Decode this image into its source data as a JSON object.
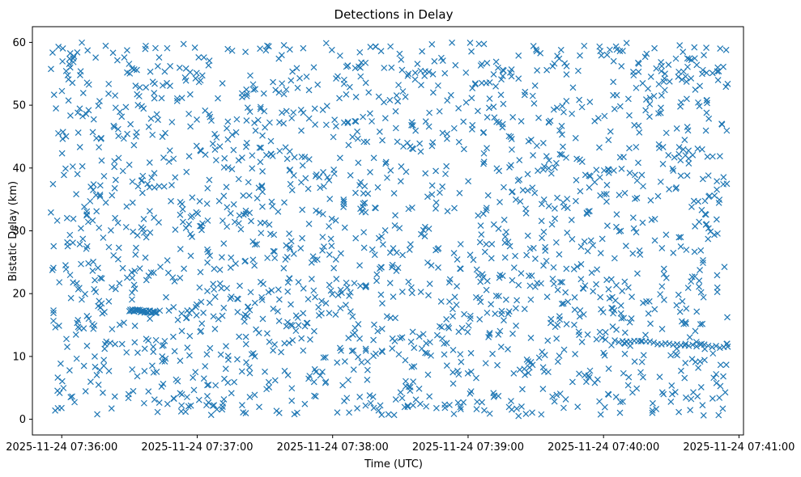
{
  "chart_data": {
    "type": "scatter",
    "title": "Detections in Delay",
    "xlabel": "Time (UTC)",
    "ylabel": "Bistatic Delay (km)",
    "marker": "x",
    "color": "#1f77b4",
    "xlim": [
      "2025-11-24 07:35:47",
      "2025-11-24 07:41:02"
    ],
    "ylim": [
      -2.5,
      62.5
    ],
    "xticks": [
      "2025-11-24 07:36:00",
      "2025-11-24 07:37:00",
      "2025-11-24 07:38:00",
      "2025-11-24 07:39:00",
      "2025-11-24 07:40:00",
      "2025-11-24 07:41:00"
    ],
    "yticks": [
      0,
      10,
      20,
      30,
      40,
      50,
      60
    ],
    "x_range_data": [
      "2025-11-24 07:35:55",
      "2025-11-24 07:40:55"
    ],
    "y_range_data": [
      0.5,
      60
    ],
    "approx_point_count": 2000,
    "tracks": [
      {
        "x": [
          "2025-11-24 07:36:30",
          "2025-11-24 07:36:42"
        ],
        "y": [
          17.4,
          17.0
        ]
      },
      {
        "x": [
          "2025-11-24 07:40:05",
          "2025-11-24 07:40:55"
        ],
        "y": [
          12.5,
          11.5
        ]
      }
    ],
    "grid": false,
    "legend": "none"
  }
}
